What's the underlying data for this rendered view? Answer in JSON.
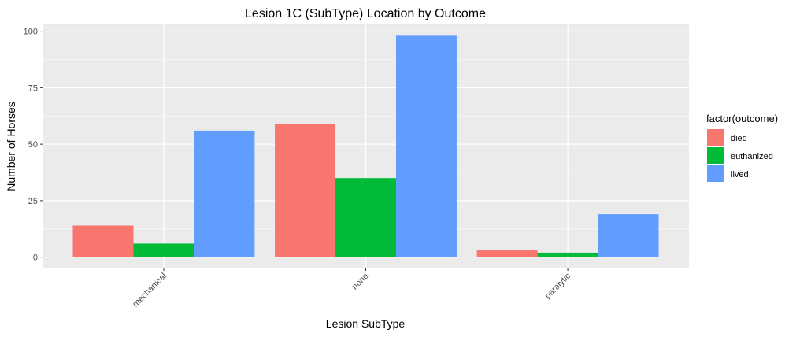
{
  "chart_data": {
    "type": "bar",
    "title": "Lesion 1C (SubType) Location by Outcome",
    "xlabel": "Lesion SubType",
    "ylabel": "Number of Horses",
    "categories": [
      "mechanical",
      "none",
      "paralytic"
    ],
    "series": [
      {
        "name": "died",
        "color": "#F8766D",
        "values": [
          14,
          59,
          3
        ]
      },
      {
        "name": "euthanized",
        "color": "#00BA38",
        "values": [
          6,
          35,
          2
        ]
      },
      {
        "name": "lived",
        "color": "#619CFF",
        "values": [
          56,
          98,
          19
        ]
      }
    ],
    "ylim": [
      -5,
      103
    ],
    "yticks": [
      0,
      25,
      50,
      75,
      100
    ],
    "legend": {
      "title": "factor(outcome)",
      "placement": "right"
    },
    "grid": true,
    "panel_background": "#EBEBEB",
    "grid_color": "#FFFFFF"
  }
}
